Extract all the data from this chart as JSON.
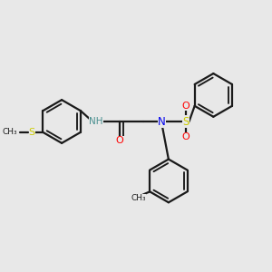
{
  "background_color": "#e8e8e8",
  "bond_color": "#1a1a1a",
  "N_color": "#0000ee",
  "O_color": "#ff0000",
  "S_thio_color": "#cccc00",
  "S_sulfonyl_color": "#cccc00",
  "NH_color": "#4a9090",
  "figsize": [
    3.0,
    3.0
  ],
  "dpi": 100,
  "xlim": [
    0,
    10
  ],
  "ylim": [
    0,
    10
  ]
}
